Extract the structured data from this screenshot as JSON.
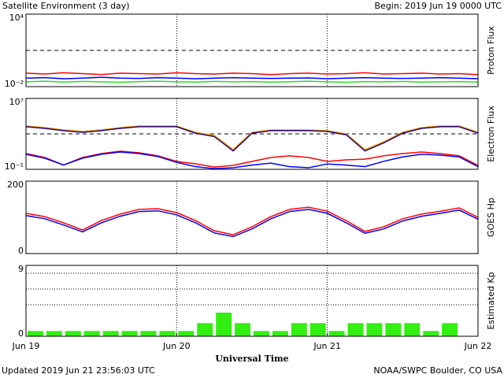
{
  "header": {
    "title": "Satellite Environment (3 day)",
    "begin": "Begin:  2019 Jun 19 0000 UTC"
  },
  "footer": {
    "updated": "Updated 2019 Jun 21 23:56:03 UTC",
    "credit": "NOAA/SWPC Boulder, CO USA"
  },
  "xaxis": {
    "label": "Universal Time",
    "xlim": [
      0,
      72
    ],
    "xticks": [
      {
        "value": 0,
        "label": "Jun 19"
      },
      {
        "value": 24,
        "label": "Jun 20"
      },
      {
        "value": 48,
        "label": "Jun 21"
      },
      {
        "value": 72,
        "label": "Jun 22"
      }
    ]
  },
  "chart_data": [
    {
      "type": "line",
      "ylabel": "Proton Flux",
      "yscale": "log",
      "ylim": [
        0.01,
        10000
      ],
      "yticks": [
        {
          "value": 10000,
          "label": "10⁴"
        },
        {
          "value": 0.01,
          "label": "10⁻²"
        }
      ],
      "hlines": [
        10
      ],
      "x": [
        0,
        3,
        6,
        9,
        12,
        15,
        18,
        21,
        24,
        27,
        30,
        33,
        36,
        39,
        42,
        45,
        48,
        51,
        54,
        57,
        60,
        63,
        66,
        69,
        72
      ],
      "series": [
        {
          "color": "#ff0000",
          "values": [
            0.13,
            0.11,
            0.14,
            0.12,
            0.1,
            0.13,
            0.12,
            0.11,
            0.14,
            0.12,
            0.11,
            0.13,
            0.12,
            0.1,
            0.12,
            0.13,
            0.11,
            0.12,
            0.14,
            0.11,
            0.12,
            0.13,
            0.11,
            0.12,
            0.1
          ]
        },
        {
          "color": "#0000ff",
          "values": [
            0.05,
            0.055,
            0.045,
            0.05,
            0.06,
            0.05,
            0.048,
            0.055,
            0.05,
            0.045,
            0.05,
            0.055,
            0.05,
            0.048,
            0.05,
            0.052,
            0.045,
            0.05,
            0.055,
            0.05,
            0.048,
            0.05,
            0.055,
            0.05,
            0.045
          ]
        },
        {
          "color": "#22e022",
          "values": [
            0.025,
            0.028,
            0.024,
            0.027,
            0.025,
            0.023,
            0.026,
            0.028,
            0.025,
            0.024,
            0.027,
            0.025,
            0.026,
            0.024,
            0.025,
            0.028,
            0.025,
            0.023,
            0.026,
            0.025,
            0.027,
            0.024,
            0.025,
            0.026,
            0.024
          ]
        }
      ]
    },
    {
      "type": "line",
      "ylabel": "Electron Flux",
      "yscale": "log",
      "ylim": [
        0.1,
        10000000
      ],
      "yticks": [
        {
          "value": 10000000,
          "label": "10⁷"
        },
        {
          "value": 0.1,
          "label": "10⁻¹"
        }
      ],
      "hlines": [
        1000
      ],
      "x": [
        0,
        3,
        6,
        9,
        12,
        15,
        18,
        21,
        24,
        27,
        30,
        33,
        36,
        39,
        42,
        45,
        48,
        51,
        54,
        57,
        60,
        63,
        66,
        69,
        72
      ],
      "series": [
        {
          "color": "#ff0000",
          "values": [
            6,
            2.15,
            0.3,
            2.15,
            6,
            11,
            7.4,
            3.3,
            0.77,
            0.42,
            0.18,
            0.28,
            0.77,
            2.15,
            3.3,
            2.15,
            0.77,
            1.16,
            1.4,
            3.3,
            6,
            9.1,
            6,
            3.3,
            0.28
          ]
        },
        {
          "color": "#0000ff",
          "values": [
            5,
            1.8,
            0.3,
            1.8,
            5,
            9,
            6,
            2.8,
            0.6,
            0.2,
            0.12,
            0.15,
            0.3,
            0.5,
            0.2,
            0.15,
            0.4,
            0.3,
            0.2,
            0.8,
            2.5,
            5,
            4,
            2.5,
            0.2
          ]
        },
        {
          "color": "#ffa500",
          "values": [
            7800,
            5140,
            2780,
            1880,
            2780,
            5140,
            7800,
            7800,
            7800,
            1520,
            660,
            17,
            1520,
            2780,
            2780,
            2780,
            2290,
            1000,
            17,
            130,
            1520,
            5140,
            7800,
            7800,
            1520
          ]
        },
        {
          "color": "#200080",
          "values": [
            6500,
            4200,
            2300,
            1500,
            2300,
            4200,
            6500,
            6500,
            6500,
            1200,
            500,
            12,
            1200,
            2300,
            2300,
            2300,
            1900,
            800,
            12,
            100,
            1200,
            4200,
            6500,
            6500,
            1200
          ]
        }
      ]
    },
    {
      "type": "line",
      "ylabel": "GOES Hp",
      "ylim": [
        0,
        200
      ],
      "yticks": [
        200,
        0
      ],
      "x": [
        0,
        3,
        6,
        9,
        12,
        15,
        18,
        21,
        24,
        27,
        30,
        33,
        36,
        39,
        42,
        45,
        48,
        51,
        54,
        57,
        60,
        63,
        66,
        69,
        72
      ],
      "series": [
        {
          "color": "#0000ff",
          "values": [
            105,
            96,
            79,
            60,
            85,
            103,
            116,
            118,
            107,
            85,
            57,
            47,
            68,
            96,
            116,
            122,
            111,
            85,
            56,
            68,
            90,
            103,
            111,
            120,
            95
          ]
        },
        {
          "color": "#ff0000",
          "values": [
            111,
            102,
            85,
            65,
            91,
            109,
            122,
            124,
            113,
            91,
            63,
            52,
            74,
            102,
            122,
            128,
            117,
            91,
            61,
            74,
            96,
            109,
            117,
            126,
            100
          ]
        }
      ]
    },
    {
      "type": "bar",
      "ylabel": "Estimated Kp",
      "ylim": [
        0,
        9
      ],
      "yticks": [
        9,
        0
      ],
      "grid_lines": [
        4,
        6,
        8
      ],
      "color": "#33ee11",
      "bar_width": 3,
      "x": [
        0,
        3,
        6,
        9,
        12,
        15,
        18,
        21,
        24,
        27,
        30,
        33,
        36,
        39,
        42,
        45,
        48,
        51,
        54,
        57,
        60,
        63,
        66,
        69
      ],
      "values": [
        0.67,
        0.67,
        0.67,
        0.67,
        0.67,
        0.67,
        0.67,
        0.67,
        0.67,
        1.67,
        3,
        1.67,
        0.67,
        0.67,
        1.67,
        1.67,
        0.67,
        1.67,
        1.67,
        1.67,
        1.67,
        0.67,
        1.67,
        null
      ]
    }
  ]
}
